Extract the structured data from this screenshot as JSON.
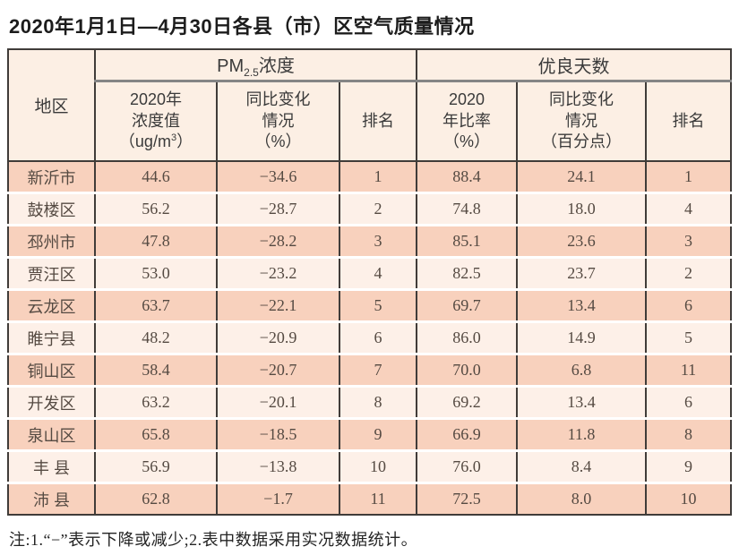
{
  "title": "2020年1月1日—4月30日各县（市）区空气质量情况",
  "note": "注:1.“−”表示下降或减少;2.表中数据采用实况数据统计。",
  "colors": {
    "row_odd_bg": "#f8d1bd",
    "row_even_bg": "#fdf0e8",
    "header_bg": "#fcefe4",
    "grid_line": "#403c39",
    "header_divider": "#858585",
    "cell_text": "#554a42"
  },
  "chart_data": {
    "type": "table",
    "title": "2020年1月1日—4月30日各县（市）区空气质量情况",
    "header": {
      "region": "地区",
      "group_pm": {
        "prefix": "PM",
        "sub": "2.5",
        "suffix": "浓度"
      },
      "group_good": "优良天数",
      "pm_value": {
        "line1": "2020年",
        "line2": "浓度值",
        "line3_prefix": "（ug/m",
        "line3_sup": "3",
        "line3_suffix": "）"
      },
      "pm_change": {
        "line1": "同比变化",
        "line2": "情况",
        "line3": "（%）"
      },
      "pm_rank": "排名",
      "good_ratio": {
        "line1": "2020",
        "line2": "年比率",
        "line3": "（%）"
      },
      "good_change": {
        "line1": "同比变化",
        "line2": "情况",
        "line3": "（百分点）"
      },
      "good_rank": "排名"
    },
    "rows": [
      {
        "region": "新沂市",
        "pm_value": "44.6",
        "pm_change": "−34.6",
        "pm_rank": "1",
        "good_ratio": "88.4",
        "good_change": "24.1",
        "good_rank": "1"
      },
      {
        "region": "鼓楼区",
        "pm_value": "56.2",
        "pm_change": "−28.7",
        "pm_rank": "2",
        "good_ratio": "74.8",
        "good_change": "18.0",
        "good_rank": "4"
      },
      {
        "region": "邳州市",
        "pm_value": "47.8",
        "pm_change": "−28.2",
        "pm_rank": "3",
        "good_ratio": "85.1",
        "good_change": "23.6",
        "good_rank": "3"
      },
      {
        "region": "贾汪区",
        "pm_value": "53.0",
        "pm_change": "−23.2",
        "pm_rank": "4",
        "good_ratio": "82.5",
        "good_change": "23.7",
        "good_rank": "2"
      },
      {
        "region": "云龙区",
        "pm_value": "63.7",
        "pm_change": "−22.1",
        "pm_rank": "5",
        "good_ratio": "69.7",
        "good_change": "13.4",
        "good_rank": "6"
      },
      {
        "region": "睢宁县",
        "pm_value": "48.2",
        "pm_change": "−20.9",
        "pm_rank": "6",
        "good_ratio": "86.0",
        "good_change": "14.9",
        "good_rank": "5"
      },
      {
        "region": "铜山区",
        "pm_value": "58.4",
        "pm_change": "−20.7",
        "pm_rank": "7",
        "good_ratio": "70.0",
        "good_change": "6.8",
        "good_rank": "11"
      },
      {
        "region": "开发区",
        "pm_value": "63.2",
        "pm_change": "−20.1",
        "pm_rank": "8",
        "good_ratio": "69.2",
        "good_change": "13.4",
        "good_rank": "6"
      },
      {
        "region": "泉山区",
        "pm_value": "65.8",
        "pm_change": "−18.5",
        "pm_rank": "9",
        "good_ratio": "66.9",
        "good_change": "11.8",
        "good_rank": "8"
      },
      {
        "region": "丰 县",
        "pm_value": "56.9",
        "pm_change": "−13.8",
        "pm_rank": "10",
        "good_ratio": "76.0",
        "good_change": "8.4",
        "good_rank": "9"
      },
      {
        "region": "沛 县",
        "pm_value": "62.8",
        "pm_change": "−1.7",
        "pm_rank": "11",
        "good_ratio": "72.5",
        "good_change": "8.0",
        "good_rank": "10"
      }
    ]
  }
}
